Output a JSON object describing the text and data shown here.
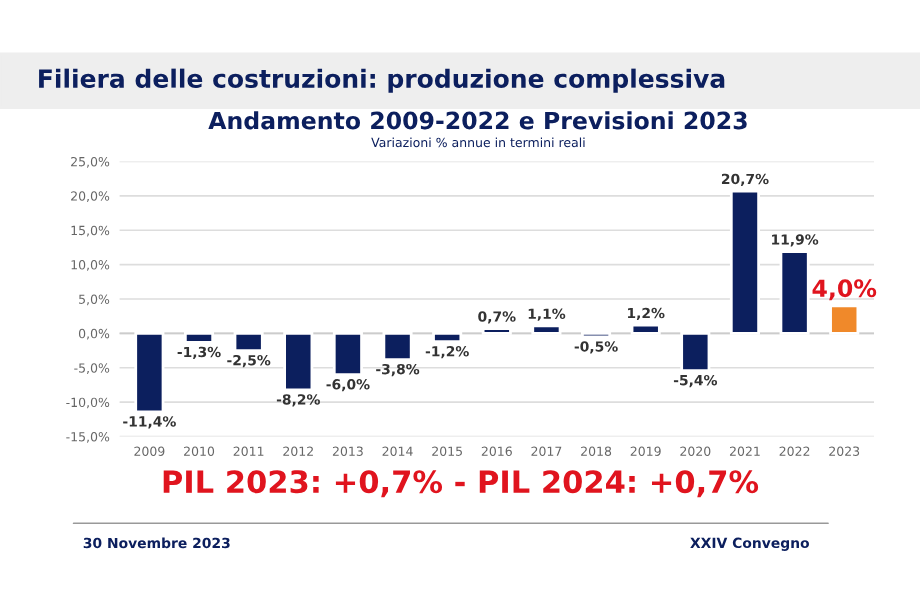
{
  "chart_data": {
    "type": "bar",
    "title": "Filiera delle costruzioni: produzione complessiva",
    "subtitle": "Andamento 2009-2022 e Previsioni 2023",
    "categories": [
      "2009",
      "2010",
      "2011",
      "2012",
      "2013",
      "2014",
      "2015",
      "2016",
      "2017",
      "2018",
      "2019",
      "2020",
      "2021",
      "2022",
      "2023"
    ],
    "values": [
      -11.4,
      -1.3,
      -2.5,
      -8.2,
      -6.0,
      -3.8,
      -1.2,
      0.7,
      1.1,
      -0.5,
      1.2,
      -5.4,
      20.7,
      11.9,
      4.0
    ],
    "value_labels": [
      "-11,4%",
      "-1,3%",
      "-2,5%",
      "-8,2%",
      "-6,0%",
      "-3,8%",
      "-1,2%",
      "0,7%",
      "1,1%",
      "-0,5%",
      "1,2%",
      "-5,4%",
      "20,7%",
      "11,9%",
      "4,0%"
    ],
    "colors": [
      "#0c1f5e",
      "#0c1f5e",
      "#0c1f5e",
      "#0c1f5e",
      "#0c1f5e",
      "#0c1f5e",
      "#0c1f5e",
      "#0c1f5e",
      "#0c1f5e",
      "#0c1f5e",
      "#0c1f5e",
      "#0c1f5e",
      "#0c1f5e",
      "#0c1f5e",
      "#f0892a"
    ],
    "ylim": [
      -15,
      25
    ],
    "yticks": [
      {
        "value": -15,
        "label": "-15,0%"
      },
      {
        "value": -10,
        "label": "-10,0%"
      },
      {
        "value": -5,
        "label": "-5,0%"
      },
      {
        "value": 0,
        "label": "0,0%"
      },
      {
        "value": 5,
        "label": "5,0%"
      },
      {
        "value": 10,
        "label": "10,0%"
      },
      {
        "value": 15,
        "label": "15,0%"
      },
      {
        "value": 20,
        "label": "20,0%"
      },
      {
        "value": 25,
        "label": "25,0%"
      }
    ],
    "grid": "y",
    "annotations": [
      "Variazioni % annue in termini reali",
      "PIL 2023: +0,7% - PIL 2024: +0,7%",
      "30 Novembre 2023",
      "XXIV Convegno"
    ]
  }
}
